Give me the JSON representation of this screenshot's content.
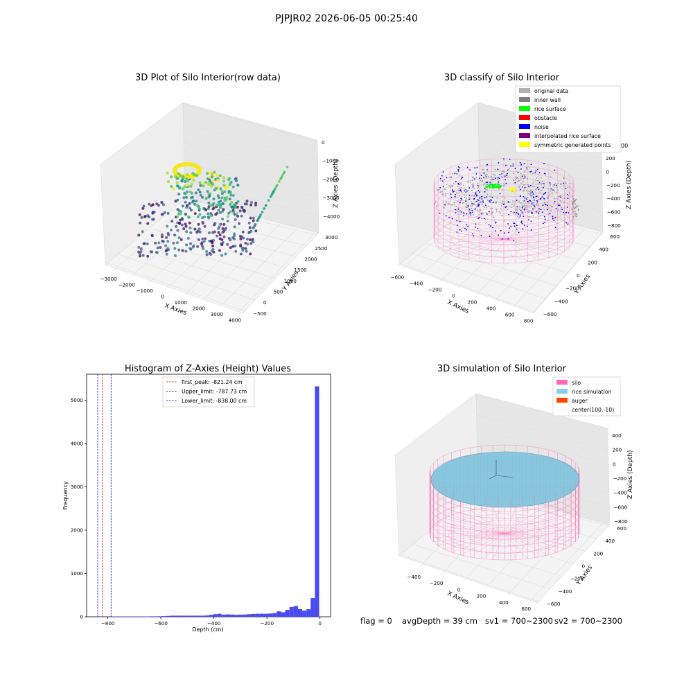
{
  "figure": {
    "suptitle": "PJPJR02 2026-06-05 00:25:40",
    "footer": {
      "flag": "flag = 0",
      "avg_depth": "avgDepth = 39 cm",
      "sv1": "sv1 = 700~2300",
      "sv2": "sv2 = 700~2300"
    }
  },
  "chart_data": [
    {
      "type": "scatter",
      "title": "3D Plot of Silo Interior(row data)",
      "xlabel": "X Axies",
      "ylabel": "Y Axies",
      "zlabel": "Z Axies (Depth)",
      "xticks": [
        "−3000",
        "−2000",
        "−1000",
        "0",
        "1000",
        "2000",
        "3000",
        "4000"
      ],
      "yticks": [
        "−500",
        "0",
        "500",
        "1000",
        "1500",
        "2000",
        "2500",
        "3000"
      ],
      "zticks": [
        "0",
        "−1000",
        "−2000",
        "−3000",
        "−4000"
      ],
      "xlim": [
        -3300,
        4300
      ],
      "ylim": [
        -600,
        3200
      ],
      "zlim": [
        -4600,
        300
      ],
      "colormap": "viridis (by depth)"
    },
    {
      "type": "scatter",
      "title": "3D classify of Silo Interior",
      "xlabel": "X Axies",
      "ylabel": "Y Axies",
      "zlabel": "Z Axies (Depth)",
      "xticks": [
        "−600",
        "−400",
        "−200",
        "0",
        "200",
        "400",
        "600",
        "800"
      ],
      "yticks": [
        "−600",
        "−400",
        "−200",
        "0",
        "200",
        "400",
        "600"
      ],
      "zticks": [
        "200",
        "0",
        "−200",
        "−400",
        "−600",
        "−800"
      ],
      "zticks_extra": "00",
      "legend_position": "top-right",
      "legend": [
        {
          "name": "original data",
          "color": "#b0b0b0"
        },
        {
          "name": "inner wall",
          "color": "#808080"
        },
        {
          "name": "rice surface",
          "color": "#00ff00"
        },
        {
          "name": "obstacle",
          "color": "#ff0000"
        },
        {
          "name": "noise",
          "color": "#0000ff"
        },
        {
          "name": "interpolated rice surface",
          "color": "#800080"
        },
        {
          "name": "symmetric generated points",
          "color": "#ffff00"
        }
      ]
    },
    {
      "type": "bar",
      "title": "Histogram of Z-Axies (Height) Values",
      "xlabel": "Depth (cm)",
      "ylabel": "Frequency",
      "xlim": [
        -880,
        40
      ],
      "ylim": [
        0,
        5600
      ],
      "xticks": [
        -800,
        -600,
        -400,
        -200,
        0
      ],
      "yticks": [
        0,
        1000,
        2000,
        3000,
        4000,
        5000
      ],
      "bar_color": "#4a4af2",
      "bin_width": 16,
      "bins": [
        {
          "x": -787,
          "v": 8
        },
        {
          "x": -771,
          "v": 8
        },
        {
          "x": -755,
          "v": 8
        },
        {
          "x": -739,
          "v": 8
        },
        {
          "x": -723,
          "v": 8
        },
        {
          "x": -707,
          "v": 8
        },
        {
          "x": -691,
          "v": 8
        },
        {
          "x": -675,
          "v": 8
        },
        {
          "x": -659,
          "v": 8
        },
        {
          "x": -643,
          "v": 10
        },
        {
          "x": -627,
          "v": 10
        },
        {
          "x": -611,
          "v": 12
        },
        {
          "x": -595,
          "v": 15
        },
        {
          "x": -579,
          "v": 20
        },
        {
          "x": -563,
          "v": 25
        },
        {
          "x": -547,
          "v": 25
        },
        {
          "x": -531,
          "v": 25
        },
        {
          "x": -515,
          "v": 25
        },
        {
          "x": -499,
          "v": 25
        },
        {
          "x": -483,
          "v": 25
        },
        {
          "x": -467,
          "v": 25
        },
        {
          "x": -451,
          "v": 25
        },
        {
          "x": -435,
          "v": 30
        },
        {
          "x": -419,
          "v": 45
        },
        {
          "x": -403,
          "v": 60
        },
        {
          "x": -387,
          "v": 70
        },
        {
          "x": -371,
          "v": 50
        },
        {
          "x": -355,
          "v": 55
        },
        {
          "x": -339,
          "v": 50
        },
        {
          "x": -323,
          "v": 45
        },
        {
          "x": -307,
          "v": 50
        },
        {
          "x": -291,
          "v": 50
        },
        {
          "x": -275,
          "v": 60
        },
        {
          "x": -259,
          "v": 65
        },
        {
          "x": -243,
          "v": 70
        },
        {
          "x": -227,
          "v": 70
        },
        {
          "x": -211,
          "v": 70
        },
        {
          "x": -195,
          "v": 75
        },
        {
          "x": -179,
          "v": 85
        },
        {
          "x": -163,
          "v": 125
        },
        {
          "x": -147,
          "v": 105
        },
        {
          "x": -131,
          "v": 160
        },
        {
          "x": -115,
          "v": 225
        },
        {
          "x": -99,
          "v": 250
        },
        {
          "x": -83,
          "v": 175
        },
        {
          "x": -67,
          "v": 140
        },
        {
          "x": -51,
          "v": 175
        },
        {
          "x": -35,
          "v": 430
        },
        {
          "x": -19,
          "v": 5320
        }
      ],
      "vlines": [
        {
          "value": -821.24,
          "color": "#ff0000",
          "label": "first_peak: -821.24 cm"
        },
        {
          "value": -787.73,
          "color": "#0000ff",
          "label": "Upper_limit: -787.73 cm"
        },
        {
          "value": -838.0,
          "color": "#0000ff",
          "label": "Lower_limit: -838.00 cm"
        }
      ],
      "legend_position": "top-center"
    },
    {
      "type": "scatter",
      "title": "3D simulation of Silo Interior",
      "xlabel": "X Axies",
      "ylabel": "Y Axies",
      "zlabel": "Z Axies (Depth)",
      "xticks": [
        "−400",
        "−200",
        "0",
        "200",
        "400",
        "600"
      ],
      "yticks": [
        "−600",
        "−400",
        "−200",
        "0",
        "200",
        "400",
        "600"
      ],
      "zticks": [
        "400",
        "200",
        "0",
        "−200",
        "−400",
        "−600",
        "−800"
      ],
      "legend_position": "top-right",
      "legend": [
        {
          "name": "silo",
          "color": "#ff69b4"
        },
        {
          "name": "rice simulation",
          "color": "#87ceeb"
        },
        {
          "name": "auger",
          "color": "#ff4500"
        },
        {
          "name": "center(100,-10)",
          "color": ""
        }
      ]
    }
  ]
}
